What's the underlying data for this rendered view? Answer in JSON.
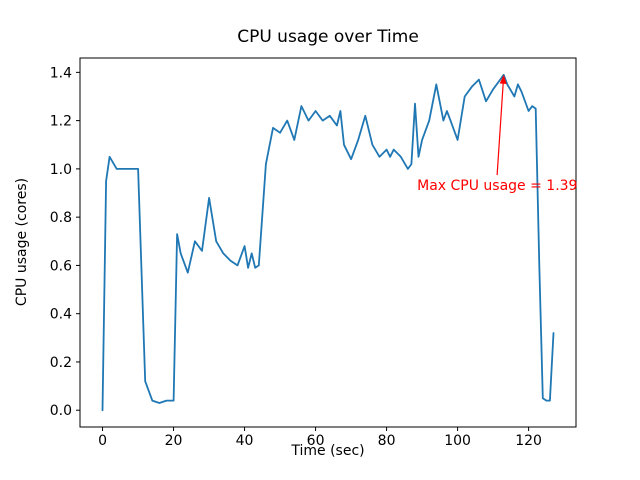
{
  "page": {
    "background": "#ffffff"
  },
  "chart_data": {
    "type": "line",
    "title": "CPU usage over Time",
    "xlabel": "Time (sec)",
    "ylabel": "CPU usage (cores)",
    "line_color": "#1f77b4",
    "grid": false,
    "legend": "none",
    "xlim": [
      -6.35,
      133.35
    ],
    "ylim": [
      -0.0695,
      1.4595
    ],
    "xticks": [
      0,
      20,
      40,
      60,
      80,
      100,
      120
    ],
    "yticks": [
      0.0,
      0.2,
      0.4,
      0.6,
      0.8,
      1.0,
      1.2,
      1.4
    ],
    "ytick_labels": [
      "0.0",
      "0.2",
      "0.4",
      "0.6",
      "0.8",
      "1.0",
      "1.2",
      "1.4"
    ],
    "x": [
      0,
      1,
      2,
      4,
      6,
      8,
      10,
      12,
      14,
      16,
      18,
      20,
      21,
      22,
      24,
      26,
      28,
      30,
      32,
      34,
      36,
      38,
      40,
      41,
      42,
      43,
      44,
      46,
      48,
      50,
      52,
      54,
      56,
      58,
      60,
      62,
      64,
      66,
      67,
      68,
      70,
      72,
      74,
      76,
      78,
      80,
      81,
      82,
      84,
      86,
      87,
      88,
      89,
      90,
      92,
      94,
      96,
      97,
      98,
      100,
      102,
      104,
      106,
      108,
      110,
      112,
      113,
      114,
      116,
      117,
      118,
      120,
      121,
      122,
      123,
      124,
      125,
      126,
      127
    ],
    "y": [
      0.0,
      0.95,
      1.05,
      1.0,
      1.0,
      1.0,
      1.0,
      0.12,
      0.04,
      0.03,
      0.04,
      0.04,
      0.73,
      0.65,
      0.57,
      0.7,
      0.66,
      0.88,
      0.7,
      0.65,
      0.62,
      0.6,
      0.68,
      0.59,
      0.65,
      0.59,
      0.6,
      1.02,
      1.17,
      1.15,
      1.2,
      1.12,
      1.26,
      1.2,
      1.24,
      1.2,
      1.22,
      1.18,
      1.24,
      1.1,
      1.04,
      1.12,
      1.22,
      1.1,
      1.05,
      1.08,
      1.05,
      1.08,
      1.05,
      1.0,
      1.02,
      1.27,
      1.05,
      1.12,
      1.2,
      1.35,
      1.2,
      1.24,
      1.2,
      1.12,
      1.3,
      1.34,
      1.37,
      1.28,
      1.33,
      1.37,
      1.39,
      1.35,
      1.3,
      1.35,
      1.32,
      1.24,
      1.26,
      1.25,
      0.6,
      0.05,
      0.04,
      0.04,
      0.32
    ],
    "max_value": 1.39,
    "annotation": {
      "text": "Max CPU usage = 1.39",
      "color": "#ff0000",
      "xy": [
        113,
        1.39
      ],
      "xytext": [
        88.6,
        0.9
      ]
    }
  }
}
